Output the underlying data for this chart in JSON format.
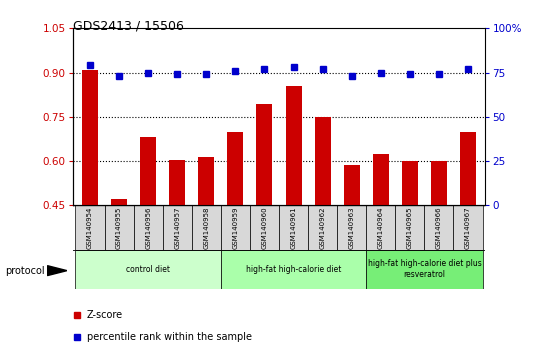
{
  "title": "GDS2413 / 15506",
  "samples": [
    "GSM140954",
    "GSM140955",
    "GSM140956",
    "GSM140957",
    "GSM140958",
    "GSM140959",
    "GSM140960",
    "GSM140961",
    "GSM140962",
    "GSM140963",
    "GSM140964",
    "GSM140965",
    "GSM140966",
    "GSM140967"
  ],
  "z_scores": [
    0.91,
    0.47,
    0.68,
    0.605,
    0.615,
    0.7,
    0.795,
    0.855,
    0.75,
    0.585,
    0.625,
    0.6,
    0.6,
    0.7
  ],
  "percentile_ranks": [
    79,
    73,
    75,
    74,
    74,
    76,
    77,
    78,
    77,
    73,
    75,
    74,
    74,
    77
  ],
  "bar_color": "#cc0000",
  "dot_color": "#0000cc",
  "ylim_left": [
    0.45,
    1.05
  ],
  "ylim_right": [
    0,
    100
  ],
  "yticks_left": [
    0.45,
    0.6,
    0.75,
    0.9,
    1.05
  ],
  "yticks_right": [
    0,
    25,
    50,
    75,
    100
  ],
  "ytick_labels_right": [
    "0",
    "25",
    "50",
    "75",
    "100%"
  ],
  "groups": [
    {
      "label": "control diet",
      "start": 0,
      "end": 4,
      "color": "#ccffcc"
    },
    {
      "label": "high-fat high-calorie diet",
      "start": 5,
      "end": 9,
      "color": "#aaffaa"
    },
    {
      "label": "high-fat high-calorie diet plus\nresveratrol",
      "start": 10,
      "end": 13,
      "color": "#77ee77"
    }
  ],
  "protocol_label": "protocol",
  "legend_zscore": "Z-score",
  "legend_percentile": "percentile rank within the sample",
  "background_color": "#ffffff",
  "plot_bg_color": "#ffffff",
  "tick_label_color_left": "#cc0000",
  "tick_label_color_right": "#0000cc"
}
